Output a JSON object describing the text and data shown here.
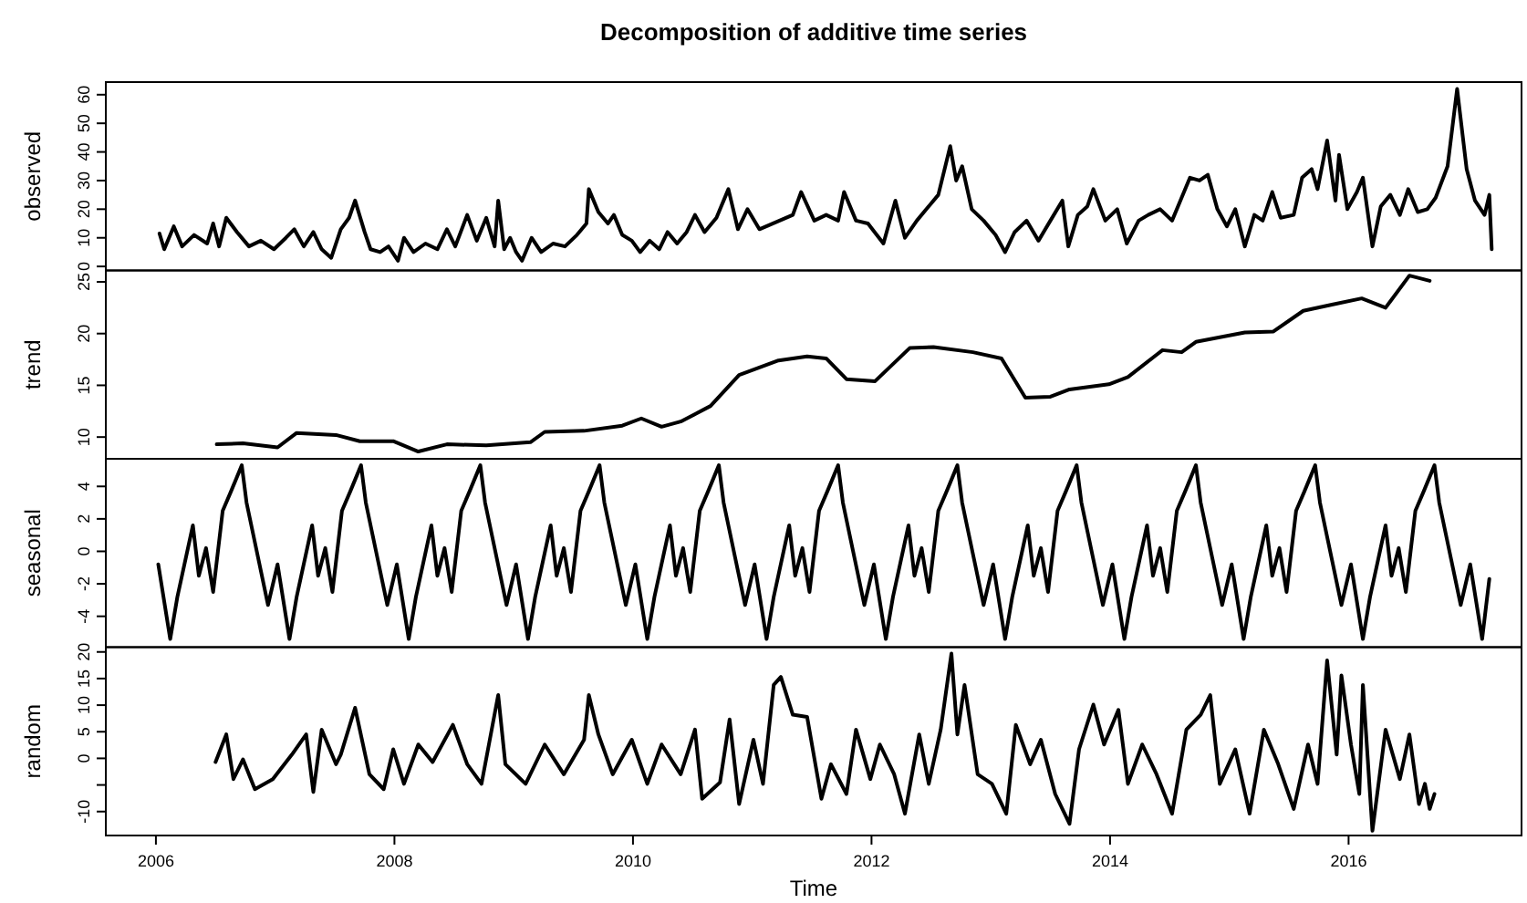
{
  "chart_data": [
    {
      "type": "line",
      "title": "Decomposition of additive time series",
      "ylabel": "observed",
      "color": "#000000",
      "tick_labels": "y",
      "xlim": [
        2005.58,
        2017.45
      ],
      "ylim": [
        -1.4,
        64.4
      ],
      "yticks": [
        0,
        10,
        20,
        30,
        40,
        50,
        60
      ],
      "x": [
        2006.03,
        2006.07,
        2006.15,
        2006.22,
        2006.32,
        2006.43,
        2006.48,
        2006.53,
        2006.59,
        2006.68,
        2006.78,
        2006.88,
        2006.99,
        2007.09,
        2007.16,
        2007.24,
        2007.32,
        2007.39,
        2007.47,
        2007.55,
        2007.62,
        2007.67,
        2007.75,
        2007.8,
        2007.88,
        2007.95,
        2008.03,
        2008.08,
        2008.16,
        2008.26,
        2008.36,
        2008.44,
        2008.51,
        2008.61,
        2008.69,
        2008.77,
        2008.84,
        2008.87,
        2008.92,
        2008.97,
        2009.02,
        2009.07,
        2009.15,
        2009.23,
        2009.33,
        2009.43,
        2009.53,
        2009.61,
        2009.63,
        2009.71,
        2009.79,
        2009.84,
        2009.91,
        2009.99,
        2010.06,
        2010.14,
        2010.22,
        2010.29,
        2010.37,
        2010.45,
        2010.52,
        2010.6,
        2010.7,
        2010.8,
        2010.88,
        2010.96,
        2011.06,
        2011.34,
        2011.41,
        2011.52,
        2011.62,
        2011.72,
        2011.77,
        2011.87,
        2011.97,
        2012.1,
        2012.2,
        2012.28,
        2012.38,
        2012.46,
        2012.56,
        2012.66,
        2012.71,
        2012.76,
        2012.84,
        2012.94,
        2013.04,
        2013.12,
        2013.2,
        2013.3,
        2013.4,
        2013.5,
        2013.6,
        2013.65,
        2013.73,
        2013.81,
        2013.86,
        2013.96,
        2014.06,
        2014.14,
        2014.24,
        2014.32,
        2014.42,
        2014.52,
        2014.6,
        2014.67,
        2014.75,
        2014.82,
        2014.9,
        2014.98,
        2015.05,
        2015.13,
        2015.21,
        2015.28,
        2015.36,
        2015.43,
        2015.54,
        2015.61,
        2015.69,
        2015.74,
        2015.82,
        2015.89,
        2015.92,
        2015.99,
        2016.07,
        2016.12,
        2016.2,
        2016.27,
        2016.35,
        2016.43,
        2016.5,
        2016.58,
        2016.66,
        2016.73,
        2016.83,
        2016.91,
        2016.99,
        2017.06,
        2017.14,
        2017.18,
        2017.2
      ],
      "values": [
        11.5,
        6,
        14,
        7,
        11,
        8,
        15,
        7,
        17,
        12,
        7,
        9,
        6,
        10,
        13,
        7,
        12,
        6,
        3,
        13,
        17,
        23,
        12,
        6,
        5,
        7,
        2,
        10,
        5,
        8,
        6,
        13,
        7,
        18,
        9,
        17,
        7,
        23,
        6,
        10,
        5,
        2,
        10,
        5,
        8,
        7,
        11,
        15,
        27,
        19,
        15,
        18,
        11,
        9,
        5,
        9,
        6,
        12,
        8,
        12,
        18,
        12,
        17,
        27,
        13,
        20,
        13,
        18,
        26,
        16,
        18,
        16,
        26,
        16,
        15,
        8,
        23,
        10,
        16,
        20,
        25,
        42,
        30,
        35,
        20,
        16,
        11,
        5,
        12,
        16,
        9,
        16,
        23,
        7,
        18,
        21,
        27,
        16,
        20,
        8,
        16,
        18,
        20,
        16,
        24,
        31,
        30,
        32,
        20,
        14,
        20,
        7,
        18,
        16,
        26,
        17,
        18,
        31,
        34,
        27,
        44,
        23,
        39,
        20,
        26,
        31,
        7,
        21,
        25,
        18,
        27,
        19,
        20,
        24,
        35,
        62,
        34,
        23,
        18,
        25,
        6
      ]
    },
    {
      "type": "line",
      "ylabel": "trend",
      "color": "#000000",
      "tick_labels": "y",
      "xlim": [
        2005.58,
        2017.45
      ],
      "ylim": [
        7.9,
        26.1
      ],
      "yticks": [
        10,
        15,
        20,
        25
      ],
      "x": [
        2006.51,
        2006.73,
        2007.02,
        2007.18,
        2007.51,
        2007.71,
        2007.99,
        2008.2,
        2008.44,
        2008.77,
        2009.14,
        2009.26,
        2009.59,
        2009.91,
        2010.07,
        2010.24,
        2010.4,
        2010.65,
        2010.89,
        2011.22,
        2011.46,
        2011.62,
        2011.79,
        2012.03,
        2012.32,
        2012.52,
        2012.85,
        2013.09,
        2013.29,
        2013.5,
        2013.66,
        2013.99,
        2014.15,
        2014.44,
        2014.6,
        2014.72,
        2015.13,
        2015.37,
        2015.62,
        2015.86,
        2016.11,
        2016.31,
        2016.51,
        2016.68
      ],
      "values": [
        9.3,
        9.4,
        9.0,
        10.4,
        10.2,
        9.6,
        9.6,
        8.6,
        9.3,
        9.2,
        9.5,
        10.5,
        10.6,
        11.1,
        11.8,
        11.0,
        11.5,
        13.0,
        16.0,
        17.4,
        17.8,
        17.6,
        15.6,
        15.4,
        18.6,
        18.7,
        18.2,
        17.6,
        13.8,
        13.9,
        14.6,
        15.1,
        15.8,
        18.4,
        18.2,
        19.2,
        20.1,
        20.2,
        22.2,
        22.8,
        23.4,
        22.5,
        25.6,
        25.1
      ]
    },
    {
      "type": "line",
      "ylabel": "seasonal",
      "color": "#000000",
      "tick_labels": "y",
      "xlim": [
        2005.58,
        2017.45
      ],
      "ylim": [
        -5.9,
        5.7
      ],
      "yticks": [
        -4,
        -2,
        0,
        2,
        4
      ],
      "x": [
        2006.02,
        2006.12,
        2006.18,
        2006.31,
        2006.36,
        2006.42,
        2006.48,
        2006.56,
        2006.63,
        2006.72,
        2006.76,
        2006.86,
        2006.94,
        2007.02,
        2007.12,
        2007.18,
        2007.31,
        2007.36,
        2007.42,
        2007.48,
        2007.56,
        2007.63,
        2007.72,
        2007.76,
        2007.86,
        2007.94,
        2008.02,
        2008.12,
        2008.18,
        2008.31,
        2008.36,
        2008.42,
        2008.48,
        2008.56,
        2008.63,
        2008.72,
        2008.76,
        2008.86,
        2008.94,
        2009.02,
        2009.12,
        2009.18,
        2009.31,
        2009.36,
        2009.42,
        2009.48,
        2009.56,
        2009.63,
        2009.72,
        2009.76,
        2009.86,
        2009.94,
        2010.02,
        2010.12,
        2010.18,
        2010.31,
        2010.36,
        2010.42,
        2010.48,
        2010.56,
        2010.63,
        2010.72,
        2010.76,
        2010.86,
        2010.94,
        2011.02,
        2011.12,
        2011.18,
        2011.31,
        2011.36,
        2011.42,
        2011.48,
        2011.56,
        2011.63,
        2011.72,
        2011.76,
        2011.86,
        2011.94,
        2012.02,
        2012.12,
        2012.18,
        2012.31,
        2012.36,
        2012.42,
        2012.48,
        2012.56,
        2012.63,
        2012.72,
        2012.76,
        2012.86,
        2012.94,
        2013.02,
        2013.12,
        2013.18,
        2013.31,
        2013.36,
        2013.42,
        2013.48,
        2013.56,
        2013.63,
        2013.72,
        2013.76,
        2013.86,
        2013.94,
        2014.02,
        2014.12,
        2014.18,
        2014.31,
        2014.36,
        2014.42,
        2014.48,
        2014.56,
        2014.63,
        2014.72,
        2014.76,
        2014.86,
        2014.94,
        2015.02,
        2015.12,
        2015.18,
        2015.31,
        2015.36,
        2015.42,
        2015.48,
        2015.56,
        2015.63,
        2015.72,
        2015.76,
        2015.86,
        2015.94,
        2016.02,
        2016.12,
        2016.18,
        2016.31,
        2016.36,
        2016.42,
        2016.48,
        2016.56,
        2016.63,
        2016.72,
        2016.76,
        2016.86,
        2016.94,
        2017.02,
        2017.12,
        2017.18
      ],
      "values": [
        -0.8,
        -5.4,
        -2.8,
        1.6,
        -1.5,
        0.2,
        -2.5,
        2.5,
        3.7,
        5.3,
        3.0,
        -0.5,
        -3.3,
        -0.8,
        -5.4,
        -2.8,
        1.6,
        -1.5,
        0.2,
        -2.5,
        2.5,
        3.7,
        5.3,
        3.0,
        -0.5,
        -3.3,
        -0.8,
        -5.4,
        -2.8,
        1.6,
        -1.5,
        0.2,
        -2.5,
        2.5,
        3.7,
        5.3,
        3.0,
        -0.5,
        -3.3,
        -0.8,
        -5.4,
        -2.8,
        1.6,
        -1.5,
        0.2,
        -2.5,
        2.5,
        3.7,
        5.3,
        3.0,
        -0.5,
        -3.3,
        -0.8,
        -5.4,
        -2.8,
        1.6,
        -1.5,
        0.2,
        -2.5,
        2.5,
        3.7,
        5.3,
        3.0,
        -0.5,
        -3.3,
        -0.8,
        -5.4,
        -2.8,
        1.6,
        -1.5,
        0.2,
        -2.5,
        2.5,
        3.7,
        5.3,
        3.0,
        -0.5,
        -3.3,
        -0.8,
        -5.4,
        -2.8,
        1.6,
        -1.5,
        0.2,
        -2.5,
        2.5,
        3.7,
        5.3,
        3.0,
        -0.5,
        -3.3,
        -0.8,
        -5.4,
        -2.8,
        1.6,
        -1.5,
        0.2,
        -2.5,
        2.5,
        3.7,
        5.3,
        3.0,
        -0.5,
        -3.3,
        -0.8,
        -5.4,
        -2.8,
        1.6,
        -1.5,
        0.2,
        -2.5,
        2.5,
        3.7,
        5.3,
        3.0,
        -0.5,
        -3.3,
        -0.8,
        -5.4,
        -2.8,
        1.6,
        -1.5,
        0.2,
        -2.5,
        2.5,
        3.7,
        5.3,
        3.0,
        -0.5,
        -3.3,
        -0.8,
        -5.4,
        -2.8,
        1.6,
        -1.5,
        0.2,
        -2.5,
        2.5,
        3.7,
        5.3,
        3.0,
        -0.5,
        -3.3,
        -0.8,
        -5.4,
        -1.7
      ]
    },
    {
      "type": "line",
      "ylabel": "random",
      "xlabel": "Time",
      "color": "#000000",
      "xlim": [
        2005.58,
        2017.45
      ],
      "xticks": [
        2006,
        2008,
        2010,
        2012,
        2014,
        2016
      ],
      "ylim": [
        -14.5,
        20.9
      ],
      "yticks": [
        -10,
        {
          "value": -5,
          "label": null
        },
        0,
        5,
        10,
        15,
        20
      ],
      "x": [
        2006.5,
        2006.59,
        2006.65,
        2006.73,
        2006.83,
        2006.98,
        2007.14,
        2007.26,
        2007.32,
        2007.39,
        2007.51,
        2007.55,
        2007.67,
        2007.79,
        2007.91,
        2007.99,
        2008.08,
        2008.2,
        2008.32,
        2008.49,
        2008.61,
        2008.73,
        2008.87,
        2008.93,
        2009.1,
        2009.26,
        2009.42,
        2009.59,
        2009.63,
        2009.71,
        2009.83,
        2009.99,
        2010.12,
        2010.24,
        2010.4,
        2010.52,
        2010.58,
        2010.73,
        2010.81,
        2010.89,
        2011.01,
        2011.09,
        2011.18,
        2011.24,
        2011.34,
        2011.46,
        2011.58,
        2011.66,
        2011.79,
        2011.87,
        2011.99,
        2012.07,
        2012.19,
        2012.28,
        2012.4,
        2012.48,
        2012.58,
        2012.67,
        2012.72,
        2012.78,
        2012.89,
        2013.01,
        2013.13,
        2013.21,
        2013.33,
        2013.42,
        2013.54,
        2013.66,
        2013.74,
        2013.86,
        2013.95,
        2014.07,
        2014.15,
        2014.27,
        2014.39,
        2014.52,
        2014.64,
        2014.76,
        2014.84,
        2014.92,
        2015.05,
        2015.17,
        2015.29,
        2015.41,
        2015.54,
        2015.66,
        2015.74,
        2015.82,
        2015.9,
        2015.94,
        2016.02,
        2016.09,
        2016.12,
        2016.2,
        2016.31,
        2016.43,
        2016.51,
        2016.59,
        2016.64,
        2016.68,
        2016.72
      ],
      "values": [
        -0.7,
        4.5,
        -3.9,
        -0.2,
        -5.8,
        -3.9,
        0.7,
        4.5,
        -6.3,
        5.4,
        -1.1,
        0.7,
        9.5,
        -3.0,
        -5.8,
        1.7,
        -4.8,
        2.6,
        -0.7,
        6.3,
        -1.1,
        -4.8,
        11.9,
        -1.1,
        -4.8,
        2.6,
        -3.0,
        3.5,
        11.9,
        4.5,
        -3.0,
        3.5,
        -4.8,
        2.6,
        -3.0,
        5.4,
        -7.6,
        -4.5,
        7.3,
        -8.6,
        3.5,
        -4.8,
        13.8,
        15.3,
        8.2,
        7.8,
        -7.6,
        -1.1,
        -6.7,
        5.4,
        -3.9,
        2.6,
        -3.0,
        -10.4,
        4.5,
        -4.8,
        5.4,
        19.7,
        4.5,
        13.8,
        -3.0,
        -4.8,
        -10.4,
        6.3,
        -1.1,
        3.5,
        -6.7,
        -12.3,
        1.7,
        10.1,
        2.6,
        9.1,
        -4.8,
        2.6,
        -3.0,
        -10.4,
        5.4,
        8.2,
        11.9,
        -4.8,
        1.7,
        -10.4,
        5.4,
        -1.1,
        -9.5,
        2.6,
        -4.8,
        18.4,
        0.7,
        15.6,
        2.6,
        -6.7,
        13.8,
        -13.6,
        5.4,
        -3.9,
        4.5,
        -8.6,
        -4.8,
        -9.5,
        -6.7
      ]
    }
  ]
}
